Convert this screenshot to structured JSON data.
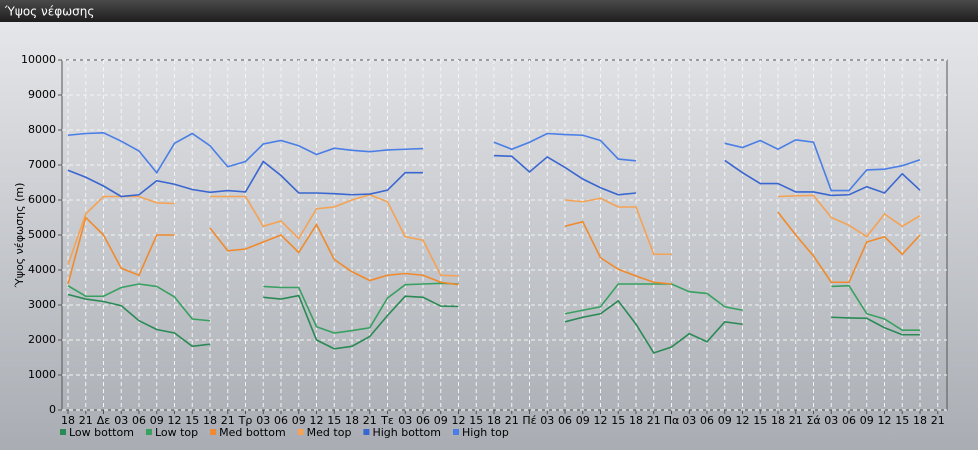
{
  "chart_data": {
    "type": "line",
    "title": "Ύψος νέφωσης",
    "ylabel": "Ύψος νέφωσης (m)",
    "categories": [
      "18",
      "21",
      "Δε",
      "03",
      "06",
      "09",
      "12",
      "15",
      "18",
      "21",
      "Τρ",
      "03",
      "06",
      "09",
      "12",
      "15",
      "18",
      "21",
      "Τε",
      "03",
      "06",
      "09",
      "12",
      "15",
      "18",
      "21",
      "Πέ",
      "03",
      "06",
      "09",
      "12",
      "15",
      "18",
      "21",
      "Πα",
      "03",
      "06",
      "09",
      "12",
      "15",
      "18",
      "21",
      "Σά",
      "03",
      "06",
      "09",
      "12",
      "15",
      "18",
      "21"
    ],
    "series": [
      {
        "name": "Low bottom",
        "color": "#2a8a55",
        "values": [
          3300,
          3170,
          3100,
          2980,
          2550,
          2300,
          2200,
          1820,
          1880,
          null,
          null,
          3220,
          3170,
          3270,
          2000,
          1750,
          1820,
          2100,
          2700,
          3250,
          3220,
          2970,
          2960,
          null,
          null,
          null,
          null,
          null,
          2520,
          2650,
          2750,
          3120,
          2450,
          1630,
          1800,
          2180,
          1950,
          2520,
          2450,
          null,
          null,
          null,
          null,
          2650,
          2630,
          2620,
          2350,
          2150,
          2150,
          null
        ]
      },
      {
        "name": "Low top",
        "color": "#38a060",
        "values": [
          3550,
          3250,
          3250,
          3500,
          3600,
          3530,
          3230,
          2600,
          2550,
          null,
          null,
          3530,
          3500,
          3500,
          2380,
          2200,
          2270,
          2350,
          3200,
          3580,
          3600,
          3620,
          3600,
          null,
          null,
          null,
          null,
          null,
          2750,
          2850,
          2950,
          3600,
          3600,
          3600,
          3600,
          3380,
          3330,
          2950,
          2850,
          null,
          null,
          null,
          null,
          3530,
          3550,
          2750,
          2600,
          2280,
          2280,
          null
        ]
      },
      {
        "name": "Med bottom",
        "color": "#f08a2c",
        "values": [
          3600,
          5500,
          5000,
          4050,
          3850,
          5000,
          5000,
          null,
          5200,
          4550,
          4600,
          4800,
          5000,
          4500,
          5300,
          4300,
          3950,
          3700,
          3850,
          3900,
          3850,
          3650,
          3580,
          null,
          null,
          null,
          null,
          null,
          5250,
          5380,
          4350,
          4020,
          3830,
          3650,
          3600,
          null,
          null,
          null,
          null,
          null,
          5650,
          5000,
          4400,
          3650,
          3650,
          4800,
          4950,
          4450,
          5000,
          null
        ]
      },
      {
        "name": "Med top",
        "color": "#f4a356",
        "values": [
          4150,
          5600,
          6100,
          6100,
          6100,
          5920,
          5900,
          null,
          6100,
          6100,
          6100,
          5250,
          5400,
          4900,
          5750,
          5800,
          6000,
          6150,
          5950,
          4950,
          4850,
          3850,
          3830,
          null,
          null,
          null,
          null,
          null,
          6000,
          5950,
          6050,
          5800,
          5800,
          4450,
          4450,
          null,
          null,
          null,
          null,
          null,
          6100,
          6120,
          6130,
          5500,
          5280,
          4950,
          5600,
          5250,
          5550,
          null
        ]
      },
      {
        "name": "High bottom",
        "color": "#3a66d0",
        "values": [
          6850,
          6650,
          6400,
          6100,
          6150,
          6550,
          6450,
          6300,
          6220,
          6270,
          6230,
          7100,
          6700,
          6200,
          6200,
          6180,
          6150,
          6170,
          6280,
          6780,
          6780,
          null,
          null,
          null,
          7270,
          7250,
          6800,
          7230,
          6930,
          6600,
          6350,
          6150,
          6200,
          null,
          null,
          null,
          null,
          7130,
          6780,
          6470,
          6470,
          6230,
          6230,
          6130,
          6150,
          6380,
          6200,
          6750,
          6280,
          null
        ]
      },
      {
        "name": "High top",
        "color": "#4a7ee6",
        "values": [
          7850,
          7900,
          7920,
          7680,
          7400,
          6780,
          7620,
          7900,
          7550,
          6950,
          7100,
          7600,
          7700,
          7550,
          7300,
          7480,
          7420,
          7380,
          7430,
          7450,
          7470,
          null,
          null,
          null,
          7650,
          7450,
          7650,
          7900,
          7870,
          7850,
          7700,
          7170,
          7120,
          null,
          null,
          null,
          null,
          7620,
          7500,
          7700,
          7450,
          7720,
          7650,
          6270,
          6270,
          6860,
          6880,
          6980,
          7150,
          null
        ]
      }
    ],
    "ylim": [
      0,
      10000
    ],
    "yticks": [
      0,
      1000,
      2000,
      3000,
      4000,
      5000,
      6000,
      7000,
      8000,
      9000,
      10000
    ],
    "grid": true
  }
}
